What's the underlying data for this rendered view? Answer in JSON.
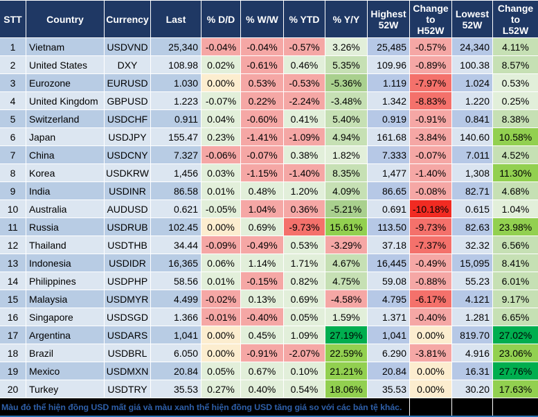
{
  "palette": {
    "hdrBg": "#1F3864",
    "stripeOdd": "#B8CCE4",
    "stripeEven": "#DCE6F1",
    "hlOdd": "#B6C8E6",
    "hlEven": "#DAE4F0",
    "r1": "#F5A7A5",
    "r2": "#F4716B",
    "r3": "#F12B22",
    "g1": "#E2EFDA",
    "g2": "#C6E0B4",
    "g3": "#A9D08E",
    "g4": "#92D050",
    "g5": "#00AE4F",
    "cream": "#FCEDCF",
    "footerBg": "#000000",
    "footerText": "#2E5FA8",
    "bottomLine": "#2E75B6"
  },
  "header": {
    "columns": [
      "STT",
      "Country",
      "Currency",
      "Last",
      "% D/D",
      "% W/W",
      "% YTD",
      "% Y/Y",
      "Highest\n52W",
      "Change\nto\nH52W",
      "Lowest\n52W",
      "Change\nto\nL52W"
    ]
  },
  "rows": [
    {
      "stt": "1",
      "country": "Vietnam",
      "currency": "USDVND",
      "last": "25,340",
      "dd": [
        "-0.04%",
        "r1"
      ],
      "ww": [
        "-0.04%",
        "r1"
      ],
      "ytd": [
        "-0.57%",
        "r1"
      ],
      "yy": [
        "3.26%",
        "g1"
      ],
      "high": "25,485",
      "ch": [
        "-0.57%",
        "r1"
      ],
      "low": "24,340",
      "cl": [
        "4.11%",
        "g2"
      ]
    },
    {
      "stt": "2",
      "country": "United States",
      "currency": "DXY",
      "last": "108.98",
      "dd": [
        "0.02%",
        "g1"
      ],
      "ww": [
        "-0.61%",
        "r1"
      ],
      "ytd": [
        "0.46%",
        "g1"
      ],
      "yy": [
        "5.35%",
        "g2"
      ],
      "high": "109.96",
      "ch": [
        "-0.89%",
        "r1"
      ],
      "low": "100.38",
      "cl": [
        "8.57%",
        "g2"
      ]
    },
    {
      "stt": "3",
      "country": "Eurozone",
      "currency": "EURUSD",
      "last": "1.030",
      "dd": [
        "0.00%",
        "c"
      ],
      "ww": [
        "0.53%",
        "r1"
      ],
      "ytd": [
        "-0.53%",
        "r1"
      ],
      "yy": [
        "-5.36%",
        "g3"
      ],
      "high": "1.119",
      "ch": [
        "-7.97%",
        "r2"
      ],
      "low": "1.024",
      "cl": [
        "0.53%",
        "g1"
      ]
    },
    {
      "stt": "4",
      "country": "United Kingdom",
      "currency": "GBPUSD",
      "last": "1.223",
      "dd": [
        "-0.07%",
        "g1"
      ],
      "ww": [
        "0.22%",
        "r1"
      ],
      "ytd": [
        "-2.24%",
        "r1"
      ],
      "yy": [
        "-3.48%",
        "g2"
      ],
      "high": "1.342",
      "ch": [
        "-8.83%",
        "r2"
      ],
      "low": "1.220",
      "cl": [
        "0.25%",
        "g1"
      ]
    },
    {
      "stt": "5",
      "country": "Switzerland",
      "currency": "USDCHF",
      "last": "0.911",
      "dd": [
        "0.04%",
        "g1"
      ],
      "ww": [
        "-0.60%",
        "r1"
      ],
      "ytd": [
        "0.41%",
        "g1"
      ],
      "yy": [
        "5.40%",
        "g2"
      ],
      "high": "0.919",
      "ch": [
        "-0.91%",
        "r1"
      ],
      "low": "0.841",
      "cl": [
        "8.38%",
        "g2"
      ]
    },
    {
      "stt": "6",
      "country": "Japan",
      "currency": "USDJPY",
      "last": "155.47",
      "dd": [
        "0.23%",
        "g1"
      ],
      "ww": [
        "-1.41%",
        "r1"
      ],
      "ytd": [
        "-1.09%",
        "r1"
      ],
      "yy": [
        "4.94%",
        "g2"
      ],
      "high": "161.68",
      "ch": [
        "-3.84%",
        "r1"
      ],
      "low": "140.60",
      "cl": [
        "10.58%",
        "g4"
      ]
    },
    {
      "stt": "7",
      "country": "China",
      "currency": "USDCNY",
      "last": "7.327",
      "dd": [
        "-0.06%",
        "r1"
      ],
      "ww": [
        "-0.07%",
        "r1"
      ],
      "ytd": [
        "0.38%",
        "g1"
      ],
      "yy": [
        "1.82%",
        "g1"
      ],
      "high": "7.333",
      "ch": [
        "-0.07%",
        "r1"
      ],
      "low": "7.011",
      "cl": [
        "4.52%",
        "g2"
      ]
    },
    {
      "stt": "8",
      "country": "Korea",
      "currency": "USDKRW",
      "last": "1,456",
      "dd": [
        "0.03%",
        "g1"
      ],
      "ww": [
        "-1.15%",
        "r1"
      ],
      "ytd": [
        "-1.40%",
        "r1"
      ],
      "yy": [
        "8.35%",
        "g2"
      ],
      "high": "1,477",
      "ch": [
        "-1.40%",
        "r1"
      ],
      "low": "1,308",
      "cl": [
        "11.30%",
        "g4"
      ]
    },
    {
      "stt": "9",
      "country": "India",
      "currency": "USDINR",
      "last": "86.58",
      "dd": [
        "0.01%",
        "g1"
      ],
      "ww": [
        "0.48%",
        "g1"
      ],
      "ytd": [
        "1.20%",
        "g1"
      ],
      "yy": [
        "4.09%",
        "g2"
      ],
      "high": "86.65",
      "ch": [
        "-0.08%",
        "r1"
      ],
      "low": "82.71",
      "cl": [
        "4.68%",
        "g2"
      ]
    },
    {
      "stt": "10",
      "country": "Australia",
      "currency": "AUDUSD",
      "last": "0.621",
      "dd": [
        "-0.05%",
        "g1"
      ],
      "ww": [
        "1.04%",
        "r1"
      ],
      "ytd": [
        "0.36%",
        "r1"
      ],
      "yy": [
        "-5.21%",
        "g3"
      ],
      "high": "0.691",
      "ch": [
        "-10.18%",
        "r3"
      ],
      "low": "0.615",
      "cl": [
        "1.04%",
        "g1"
      ]
    },
    {
      "stt": "11",
      "country": "Russia",
      "currency": "USDRUB",
      "last": "102.45",
      "dd": [
        "0.00%",
        "c"
      ],
      "ww": [
        "0.69%",
        "g1"
      ],
      "ytd": [
        "-9.73%",
        "r2"
      ],
      "yy": [
        "15.61%",
        "g4"
      ],
      "high": "113.50",
      "ch": [
        "-9.73%",
        "r2"
      ],
      "low": "82.63",
      "cl": [
        "23.98%",
        "g4"
      ]
    },
    {
      "stt": "12",
      "country": "Thailand",
      "currency": "USDTHB",
      "last": "34.44",
      "dd": [
        "-0.09%",
        "r1"
      ],
      "ww": [
        "-0.49%",
        "r1"
      ],
      "ytd": [
        "0.53%",
        "g1"
      ],
      "yy": [
        "-3.29%",
        "r1"
      ],
      "high": "37.18",
      "ch": [
        "-7.37%",
        "r2"
      ],
      "low": "32.32",
      "cl": [
        "6.56%",
        "g2"
      ]
    },
    {
      "stt": "13",
      "country": "Indonesia",
      "currency": "USDIDR",
      "last": "16,365",
      "dd": [
        "0.06%",
        "g1"
      ],
      "ww": [
        "1.14%",
        "g1"
      ],
      "ytd": [
        "1.71%",
        "g1"
      ],
      "yy": [
        "4.67%",
        "g2"
      ],
      "high": "16,445",
      "ch": [
        "-0.49%",
        "r1"
      ],
      "low": "15,095",
      "cl": [
        "8.41%",
        "g2"
      ]
    },
    {
      "stt": "14",
      "country": "Philippines",
      "currency": "USDPHP",
      "last": "58.56",
      "dd": [
        "0.01%",
        "g1"
      ],
      "ww": [
        "-0.15%",
        "r1"
      ],
      "ytd": [
        "0.82%",
        "g1"
      ],
      "yy": [
        "4.75%",
        "g2"
      ],
      "high": "59.08",
      "ch": [
        "-0.88%",
        "r1"
      ],
      "low": "55.23",
      "cl": [
        "6.01%",
        "g2"
      ]
    },
    {
      "stt": "15",
      "country": "Malaysia",
      "currency": "USDMYR",
      "last": "4.499",
      "dd": [
        "-0.02%",
        "r1"
      ],
      "ww": [
        "0.13%",
        "g1"
      ],
      "ytd": [
        "0.69%",
        "g1"
      ],
      "yy": [
        "-4.58%",
        "r1"
      ],
      "high": "4.795",
      "ch": [
        "-6.17%",
        "r2"
      ],
      "low": "4.121",
      "cl": [
        "9.17%",
        "g2"
      ]
    },
    {
      "stt": "16",
      "country": "Singapore",
      "currency": "USDSGD",
      "last": "1.366",
      "dd": [
        "-0.01%",
        "r1"
      ],
      "ww": [
        "-0.40%",
        "r1"
      ],
      "ytd": [
        "0.05%",
        "g1"
      ],
      "yy": [
        "1.59%",
        "g1"
      ],
      "high": "1.371",
      "ch": [
        "-0.40%",
        "r1"
      ],
      "low": "1.281",
      "cl": [
        "6.65%",
        "g2"
      ]
    },
    {
      "stt": "17",
      "country": "Argentina",
      "currency": "USDARS",
      "last": "1,041",
      "dd": [
        "0.00%",
        "c"
      ],
      "ww": [
        "0.45%",
        "g1"
      ],
      "ytd": [
        "1.09%",
        "g1"
      ],
      "yy": [
        "27.19%",
        "g5"
      ],
      "high": "1,041",
      "ch": [
        "0.00%",
        "c"
      ],
      "low": "819.70",
      "cl": [
        "27.02%",
        "g5"
      ]
    },
    {
      "stt": "18",
      "country": "Brazil",
      "currency": "USDBRL",
      "last": "6.050",
      "dd": [
        "0.00%",
        "c"
      ],
      "ww": [
        "-0.91%",
        "r1"
      ],
      "ytd": [
        "-2.07%",
        "r1"
      ],
      "yy": [
        "22.59%",
        "g4"
      ],
      "high": "6.290",
      "ch": [
        "-3.81%",
        "r1"
      ],
      "low": "4.916",
      "cl": [
        "23.06%",
        "g4"
      ]
    },
    {
      "stt": "19",
      "country": "Mexico",
      "currency": "USDMXN",
      "last": "20.84",
      "dd": [
        "0.05%",
        "g1"
      ],
      "ww": [
        "0.67%",
        "g1"
      ],
      "ytd": [
        "0.10%",
        "g1"
      ],
      "yy": [
        "21.21%",
        "g4"
      ],
      "high": "20.84",
      "ch": [
        "0.00%",
        "c"
      ],
      "low": "16.31",
      "cl": [
        "27.76%",
        "g5"
      ]
    },
    {
      "stt": "20",
      "country": "Turkey",
      "currency": "USDTRY",
      "last": "35.53",
      "dd": [
        "0.27%",
        "g1"
      ],
      "ww": [
        "0.40%",
        "g1"
      ],
      "ytd": [
        "0.54%",
        "g1"
      ],
      "yy": [
        "18.06%",
        "g4"
      ],
      "high": "35.53",
      "ch": [
        "0.00%",
        "c"
      ],
      "low": "30.20",
      "cl": [
        "17.63%",
        "g4"
      ]
    }
  ],
  "footer": {
    "note": "Màu đỏ thể hiện đồng USD mất giá và màu xanh thể hiện đồng USD tăng giá so với các bản tệ khác."
  }
}
